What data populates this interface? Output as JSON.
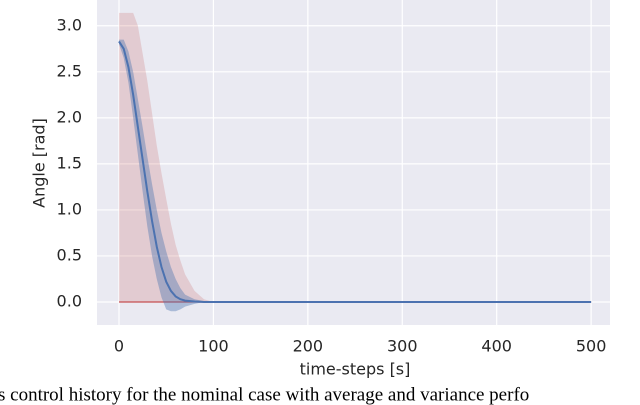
{
  "chart_data": {
    "type": "line",
    "xlabel": "time-steps [s]",
    "ylabel": "Angle [rad]",
    "caption": "s control history for the nominal case with average and variance perfo",
    "x": [
      0,
      5,
      10,
      15,
      20,
      25,
      30,
      35,
      40,
      45,
      50,
      55,
      60,
      65,
      70,
      80,
      90,
      100,
      150,
      200,
      300,
      400,
      500
    ],
    "bands": [
      {
        "color": "#c44e52",
        "opacity": 0.2,
        "upper": [
          3.14,
          3.14,
          3.14,
          3.14,
          3.0,
          2.7,
          2.4,
          2.05,
          1.7,
          1.4,
          1.12,
          0.85,
          0.62,
          0.45,
          0.3,
          0.12,
          0.03,
          0,
          0,
          0,
          0,
          0,
          0
        ],
        "lower": [
          0,
          0,
          0,
          0,
          0,
          0,
          0,
          0,
          0,
          0,
          0,
          0,
          0,
          0,
          0,
          0,
          0,
          0,
          0,
          0,
          0,
          0,
          0
        ]
      },
      {
        "color": "#4c72b0",
        "opacity": 0.4,
        "upper": [
          2.85,
          2.85,
          2.72,
          2.5,
          2.2,
          1.9,
          1.58,
          1.28,
          1.0,
          0.75,
          0.55,
          0.38,
          0.25,
          0.15,
          0.08,
          0.03,
          0.01,
          0,
          0,
          0,
          0,
          0,
          0
        ],
        "lower": [
          2.8,
          2.65,
          2.38,
          2.0,
          1.6,
          1.2,
          0.82,
          0.5,
          0.25,
          0.05,
          -0.08,
          -0.1,
          -0.1,
          -0.08,
          -0.05,
          -0.02,
          0,
          0,
          0,
          0,
          0,
          0,
          0
        ]
      }
    ],
    "series": [
      {
        "color": "#4c72b0",
        "values": [
          2.83,
          2.75,
          2.55,
          2.25,
          1.9,
          1.55,
          1.2,
          0.88,
          0.6,
          0.38,
          0.22,
          0.12,
          0.06,
          0.03,
          0.015,
          0.005,
          0,
          0,
          0,
          0,
          0,
          0,
          0
        ]
      }
    ],
    "xlim": [
      -23.3,
      520
    ],
    "ylim": [
      -0.25,
      3.28
    ],
    "xticks": [
      0,
      100,
      200,
      300,
      400,
      500
    ],
    "yticks": [
      {
        "value": 0,
        "label": "0.0"
      },
      {
        "value": 0.5,
        "label": "0.5"
      },
      {
        "value": 1,
        "label": "1.0"
      },
      {
        "value": 1.5,
        "label": "1.5"
      },
      {
        "value": 2,
        "label": "2.0"
      },
      {
        "value": 2.5,
        "label": "2.5"
      },
      {
        "value": 3,
        "label": "3.0"
      }
    ],
    "grid": true,
    "background": "#eaeaf2"
  }
}
